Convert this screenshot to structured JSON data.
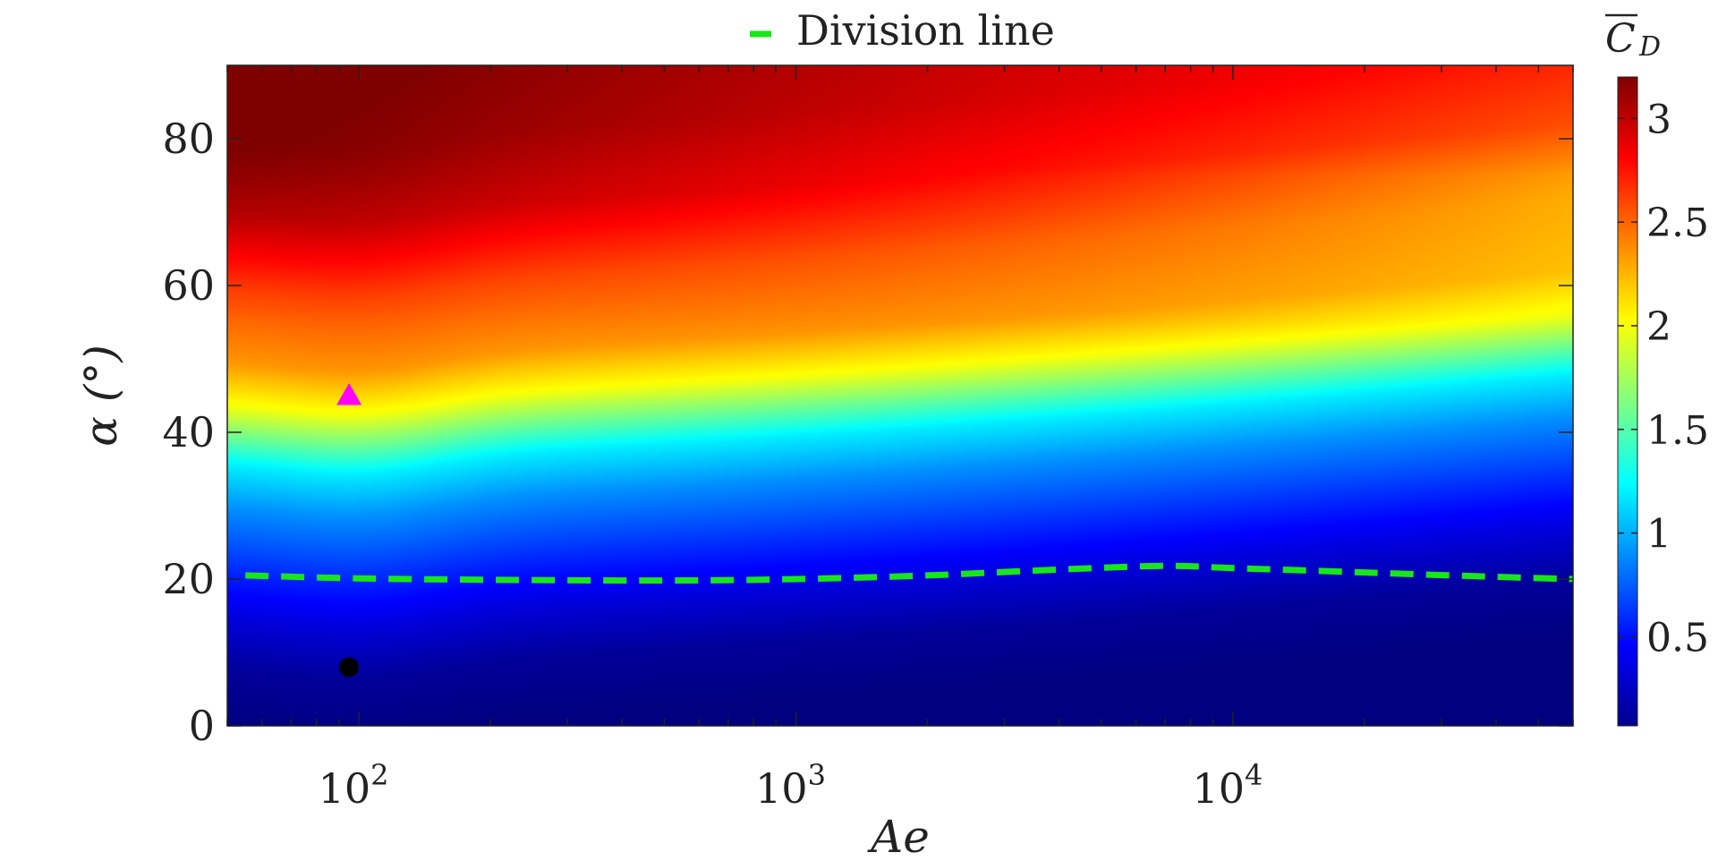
{
  "chart_data": {
    "type": "heatmap",
    "title": "",
    "xlabel": "Ae",
    "ylabel": "α (°)",
    "x_scale": "log",
    "xlim": [
      50,
      60000
    ],
    "ylim": [
      0,
      90
    ],
    "x_ticks": [
      100,
      1000,
      10000
    ],
    "x_tick_labels": [
      {
        "base": "10",
        "exp": "2"
      },
      {
        "base": "10",
        "exp": "3"
      },
      {
        "base": "10",
        "exp": "4"
      }
    ],
    "y_ticks": [
      0,
      20,
      40,
      60,
      80
    ],
    "y_tick_labels": [
      "0",
      "20",
      "40",
      "60",
      "80"
    ],
    "colorbar": {
      "label_main": "C",
      "label_sub": "D",
      "colormap": "jet",
      "range": [
        0.07,
        3.2
      ],
      "ticks": [
        0.5,
        1,
        1.5,
        2,
        2.5,
        3
      ],
      "tick_labels": [
        "0.5",
        "1",
        "1.5",
        "2",
        "2.5",
        "3"
      ]
    },
    "legend": {
      "placement": "top-center",
      "entries": [
        {
          "label": "Division line",
          "color": "#19e619",
          "style": "dashed"
        }
      ]
    },
    "series": [
      {
        "name": "Division line",
        "type": "line",
        "color": "#19e619",
        "points": [
          {
            "x": 55,
            "y": 20.5
          },
          {
            "x": 100,
            "y": 20.1
          },
          {
            "x": 200,
            "y": 19.9
          },
          {
            "x": 500,
            "y": 19.8
          },
          {
            "x": 1000,
            "y": 20.0
          },
          {
            "x": 2000,
            "y": 20.5
          },
          {
            "x": 4000,
            "y": 21.3
          },
          {
            "x": 7000,
            "y": 21.8
          },
          {
            "x": 10000,
            "y": 21.5
          },
          {
            "x": 20000,
            "y": 20.9
          },
          {
            "x": 40000,
            "y": 20.3
          },
          {
            "x": 60000,
            "y": 20.0
          }
        ]
      }
    ],
    "markers": [
      {
        "shape": "triangle",
        "color": "#ff00ff",
        "x": 95,
        "y": 45
      },
      {
        "shape": "circle",
        "color": "#000000",
        "x": 95,
        "y": 8
      }
    ],
    "field": {
      "description_alpha_profile": [
        {
          "alpha": 0,
          "cd": 0.07
        },
        {
          "alpha": 8,
          "cd": 0.15
        },
        {
          "alpha": 15,
          "cd": 0.35
        },
        {
          "alpha": 22,
          "cd": 0.6
        },
        {
          "alpha": 30,
          "cd": 0.9
        },
        {
          "alpha": 36,
          "cd": 1.2
        },
        {
          "alpha": 40,
          "cd": 1.6
        },
        {
          "alpha": 44,
          "cd": 2.0
        },
        {
          "alpha": 50,
          "cd": 2.35
        },
        {
          "alpha": 60,
          "cd": 2.6
        },
        {
          "alpha": 70,
          "cd": 2.95
        },
        {
          "alpha": 80,
          "cd": 3.1
        },
        {
          "alpha": 90,
          "cd": 3.15
        }
      ]
    }
  }
}
